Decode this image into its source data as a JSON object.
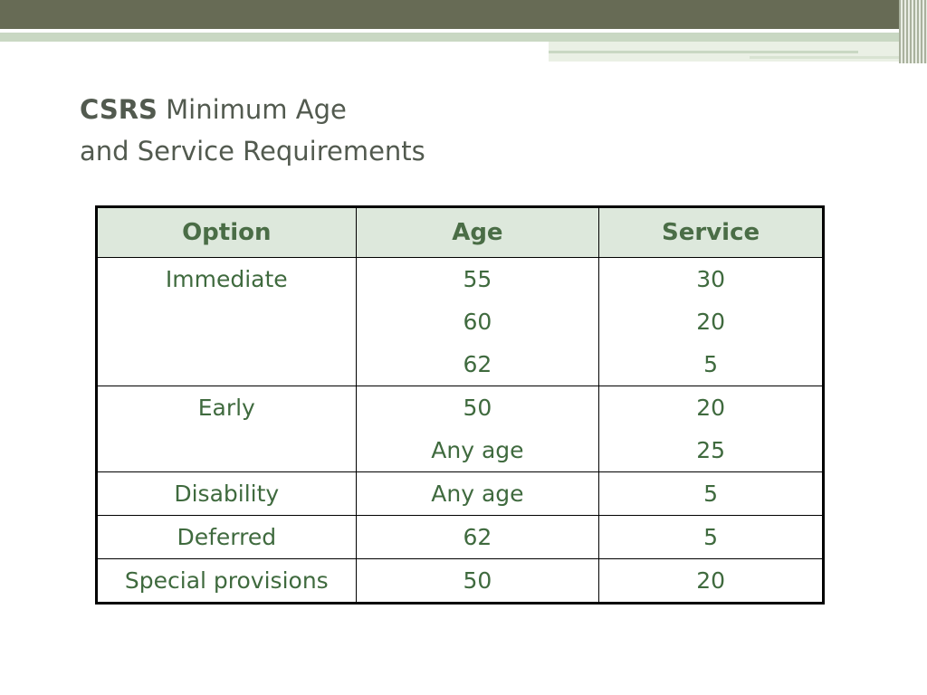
{
  "title": {
    "bold": "CSRS",
    "line1_rest": " Minimum Age",
    "line2": "and Service Requirements"
  },
  "colors": {
    "header_band": "#676b55",
    "accent_light": "#c9d8c3",
    "header_fill": "#dde8dc",
    "header_text": "#4a6d46",
    "cell_text": "#3f6a3e",
    "title_text": "#525a4f"
  },
  "table": {
    "headers": [
      "Option",
      "Age",
      "Service"
    ],
    "rows": [
      {
        "option": "Immediate",
        "ages": [
          "55",
          "60",
          "62"
        ],
        "services": [
          "30",
          "20",
          "5"
        ]
      },
      {
        "option": "Early",
        "ages": [
          "50",
          "Any age"
        ],
        "services": [
          "20",
          "25"
        ]
      },
      {
        "option": "Disability",
        "ages": [
          "Any age"
        ],
        "services": [
          "5"
        ]
      },
      {
        "option": "Deferred",
        "ages": [
          "62"
        ],
        "services": [
          "5"
        ]
      },
      {
        "option": "Special provisions",
        "ages": [
          "50"
        ],
        "services": [
          "20"
        ]
      }
    ]
  }
}
